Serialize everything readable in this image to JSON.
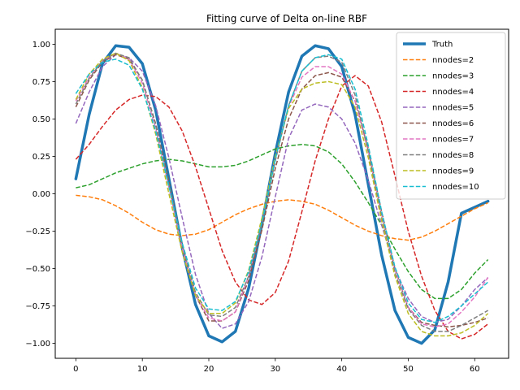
{
  "chart_data": {
    "type": "line",
    "title": "Fitting curve of Delta on-line RBF",
    "xlabel": "",
    "ylabel": "",
    "xlim": [
      -3.1,
      65.1
    ],
    "ylim": [
      -1.1,
      1.1
    ],
    "x_ticks": [
      0,
      10,
      20,
      30,
      40,
      50,
      60
    ],
    "y_ticks": [
      -1.0,
      -0.75,
      -0.5,
      -0.25,
      0.0,
      0.25,
      0.5,
      0.75,
      1.0
    ],
    "x_tick_labels": [
      "0",
      "10",
      "20",
      "30",
      "40",
      "50",
      "60"
    ],
    "y_tick_labels": [
      "−1.00",
      "−0.75",
      "−0.50",
      "−0.25",
      "0.00",
      "0.25",
      "0.50",
      "0.75",
      "1.00"
    ],
    "grid": false,
    "legend_position": "top-right",
    "x": [
      0,
      2,
      4,
      6,
      8,
      10,
      12,
      14,
      16,
      18,
      20,
      22,
      24,
      26,
      28,
      30,
      32,
      34,
      36,
      38,
      40,
      42,
      44,
      46,
      48,
      50,
      52,
      54,
      56,
      58,
      60,
      62
    ],
    "series": [
      {
        "name": "Truth",
        "color": "#1f77b4",
        "style": "solid",
        "values": [
          0.1,
          0.53,
          0.87,
          0.99,
          0.98,
          0.87,
          0.56,
          0.1,
          -0.36,
          -0.74,
          -0.95,
          -0.99,
          -0.92,
          -0.63,
          -0.2,
          0.27,
          0.68,
          0.92,
          0.99,
          0.97,
          0.85,
          0.53,
          0.06,
          -0.41,
          -0.78,
          -0.96,
          -1.0,
          -0.91,
          -0.59,
          -0.13,
          -0.09,
          -0.05
        ]
      },
      {
        "name": "nnodes=2",
        "color": "#ff7f0e",
        "style": "dashed",
        "values": [
          -0.01,
          -0.02,
          -0.04,
          -0.08,
          -0.13,
          -0.19,
          -0.24,
          -0.27,
          -0.28,
          -0.27,
          -0.24,
          -0.19,
          -0.14,
          -0.1,
          -0.07,
          -0.05,
          -0.04,
          -0.05,
          -0.07,
          -0.11,
          -0.16,
          -0.21,
          -0.25,
          -0.28,
          -0.3,
          -0.31,
          -0.29,
          -0.25,
          -0.2,
          -0.15,
          -0.1,
          -0.06
        ]
      },
      {
        "name": "nnodes=3",
        "color": "#2ca02c",
        "style": "dashed",
        "values": [
          0.04,
          0.06,
          0.1,
          0.14,
          0.17,
          0.2,
          0.22,
          0.23,
          0.22,
          0.2,
          0.18,
          0.18,
          0.19,
          0.22,
          0.26,
          0.3,
          0.32,
          0.33,
          0.32,
          0.28,
          0.2,
          0.08,
          -0.06,
          -0.21,
          -0.37,
          -0.52,
          -0.64,
          -0.7,
          -0.7,
          -0.64,
          -0.53,
          -0.44
        ]
      },
      {
        "name": "nnodes=4",
        "color": "#d62728",
        "style": "dashed",
        "values": [
          0.23,
          0.33,
          0.45,
          0.56,
          0.63,
          0.66,
          0.65,
          0.58,
          0.42,
          0.18,
          -0.1,
          -0.38,
          -0.59,
          -0.71,
          -0.74,
          -0.66,
          -0.45,
          -0.12,
          0.22,
          0.5,
          0.72,
          0.79,
          0.72,
          0.48,
          0.12,
          -0.25,
          -0.55,
          -0.78,
          -0.92,
          -0.97,
          -0.94,
          -0.87
        ]
      },
      {
        "name": "nnodes=5",
        "color": "#9467bd",
        "style": "dashed",
        "values": [
          0.47,
          0.68,
          0.85,
          0.93,
          0.91,
          0.82,
          0.59,
          0.24,
          -0.16,
          -0.54,
          -0.8,
          -0.9,
          -0.87,
          -0.72,
          -0.42,
          -0.02,
          0.37,
          0.56,
          0.6,
          0.58,
          0.5,
          0.34,
          0.09,
          -0.21,
          -0.5,
          -0.7,
          -0.82,
          -0.86,
          -0.84,
          -0.75,
          -0.64,
          -0.56
        ]
      },
      {
        "name": "nnodes=6",
        "color": "#8c564b",
        "style": "dashed",
        "values": [
          0.58,
          0.76,
          0.88,
          0.93,
          0.9,
          0.76,
          0.47,
          0.08,
          -0.34,
          -0.68,
          -0.85,
          -0.85,
          -0.79,
          -0.58,
          -0.24,
          0.17,
          0.5,
          0.7,
          0.79,
          0.81,
          0.78,
          0.62,
          0.3,
          -0.12,
          -0.5,
          -0.76,
          -0.86,
          -0.88,
          -0.89,
          -0.88,
          -0.86,
          -0.83
        ]
      },
      {
        "name": "nnodes=7",
        "color": "#e377c2",
        "style": "dashed",
        "values": [
          0.62,
          0.78,
          0.89,
          0.94,
          0.9,
          0.74,
          0.44,
          0.04,
          -0.36,
          -0.68,
          -0.83,
          -0.85,
          -0.79,
          -0.55,
          -0.19,
          0.24,
          0.58,
          0.78,
          0.85,
          0.85,
          0.8,
          0.62,
          0.28,
          -0.14,
          -0.51,
          -0.76,
          -0.87,
          -0.89,
          -0.87,
          -0.79,
          -0.69,
          -0.56
        ]
      },
      {
        "name": "nnodes=8",
        "color": "#7f7f7f",
        "style": "dashed",
        "values": [
          0.6,
          0.77,
          0.89,
          0.94,
          0.91,
          0.76,
          0.46,
          0.06,
          -0.34,
          -0.66,
          -0.81,
          -0.82,
          -0.76,
          -0.55,
          -0.2,
          0.22,
          0.59,
          0.82,
          0.91,
          0.92,
          0.88,
          0.66,
          0.28,
          -0.16,
          -0.53,
          -0.77,
          -0.88,
          -0.92,
          -0.92,
          -0.88,
          -0.83,
          -0.78
        ]
      },
      {
        "name": "nnodes=9",
        "color": "#bcbd22",
        "style": "dashed",
        "values": [
          0.63,
          0.8,
          0.9,
          0.94,
          0.89,
          0.71,
          0.4,
          0.0,
          -0.39,
          -0.68,
          -0.8,
          -0.8,
          -0.73,
          -0.51,
          -0.16,
          0.25,
          0.57,
          0.7,
          0.74,
          0.75,
          0.73,
          0.58,
          0.24,
          -0.18,
          -0.55,
          -0.8,
          -0.92,
          -0.95,
          -0.95,
          -0.93,
          -0.88,
          -0.8
        ]
      },
      {
        "name": "nnodes=10",
        "color": "#17becf",
        "style": "dashed",
        "values": [
          0.67,
          0.8,
          0.88,
          0.9,
          0.86,
          0.7,
          0.42,
          0.05,
          -0.33,
          -0.63,
          -0.77,
          -0.78,
          -0.72,
          -0.52,
          -0.19,
          0.23,
          0.59,
          0.82,
          0.91,
          0.93,
          0.9,
          0.7,
          0.32,
          -0.12,
          -0.49,
          -0.73,
          -0.84,
          -0.86,
          -0.82,
          -0.75,
          -0.67,
          -0.59
        ]
      }
    ]
  }
}
